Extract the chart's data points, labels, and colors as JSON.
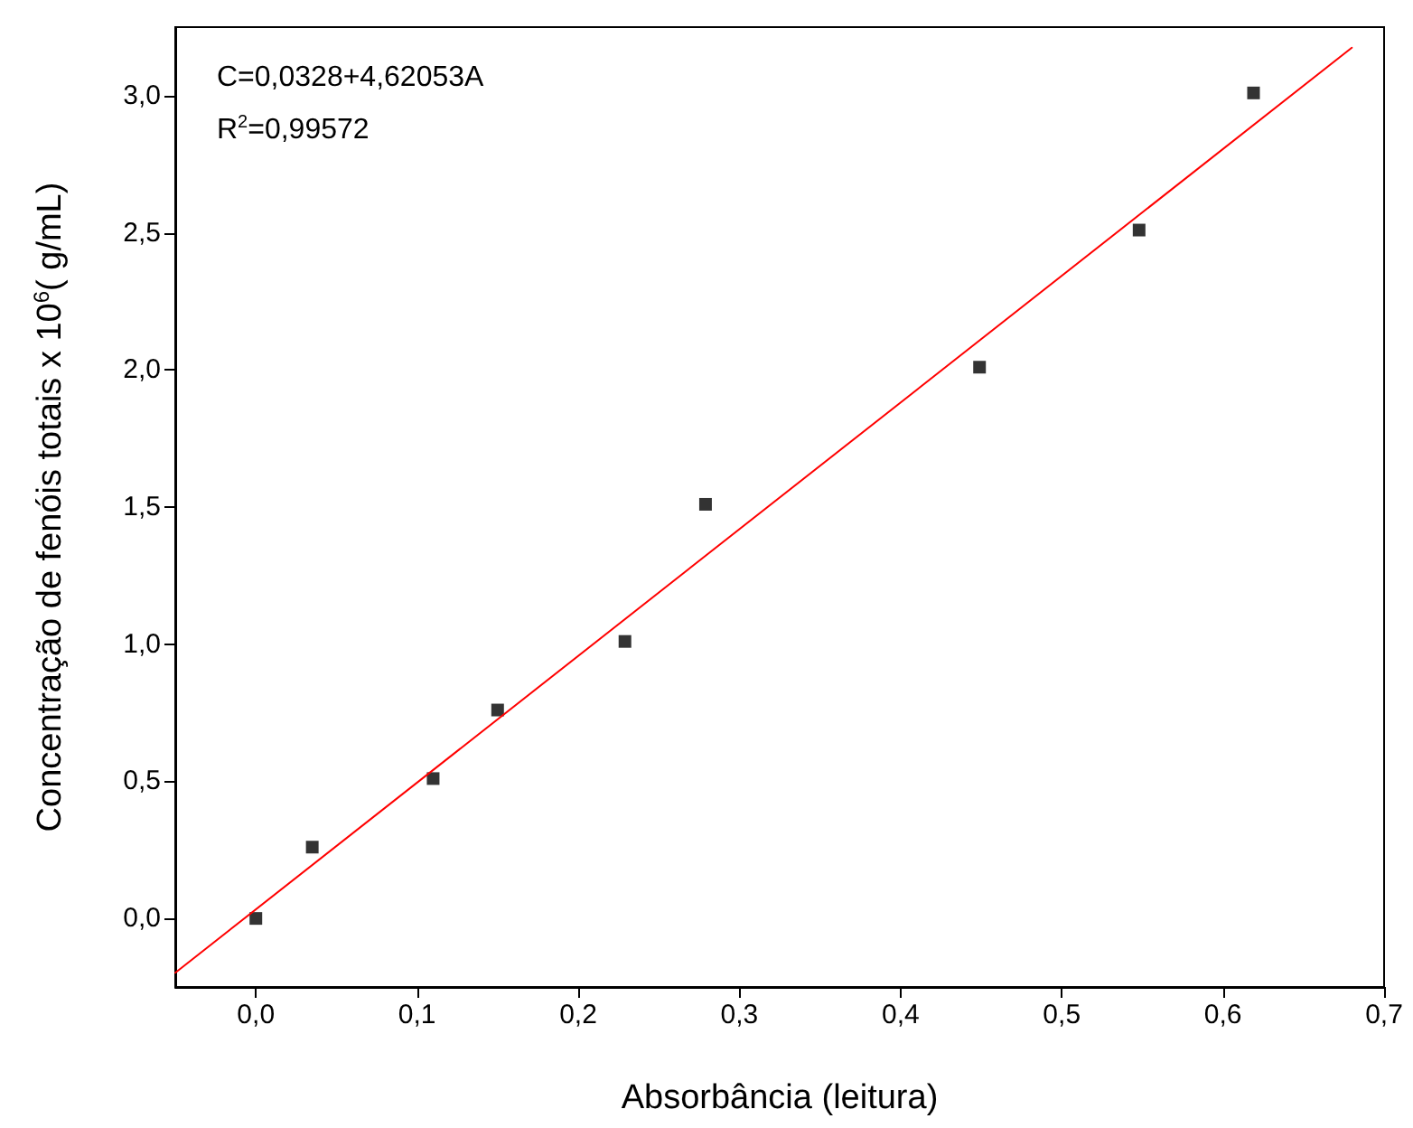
{
  "chart_data": {
    "type": "scatter",
    "xlabel": "Absorbância (leitura)",
    "ylabel": "Concentração de fenóis totais x 10$^{6}$( g/mL)",
    "annotations": [
      "C=0,0328+4,62053A",
      "R$^{2}$=0,99572"
    ],
    "xlim": [
      -0.05,
      0.7
    ],
    "ylim": [
      -0.25,
      3.25
    ],
    "xticks": [
      {
        "value": 0,
        "label": "0,0"
      },
      {
        "value": 0.1,
        "label": "0,1"
      },
      {
        "value": 0.2,
        "label": "0,2"
      },
      {
        "value": 0.3,
        "label": "0,3"
      },
      {
        "value": 0.4,
        "label": "0,4"
      },
      {
        "value": 0.5,
        "label": "0,5"
      },
      {
        "value": 0.6,
        "label": "0,6"
      },
      {
        "value": 0.7,
        "label": "0,7"
      }
    ],
    "yticks": [
      {
        "value": 0,
        "label": "0,0"
      },
      {
        "value": 0.5,
        "label": "0,5"
      },
      {
        "value": 1,
        "label": "1,0"
      },
      {
        "value": 1.5,
        "label": "1,5"
      },
      {
        "value": 2,
        "label": "2,0"
      },
      {
        "value": 2.5,
        "label": "2,5"
      },
      {
        "value": 3,
        "label": "3,0"
      }
    ],
    "grid": false,
    "series": [
      {
        "color": "#000000",
        "marker": "square",
        "x": [
          0,
          0.035,
          0.11,
          0.15,
          0.229,
          0.279,
          0.449,
          0.548,
          0.619
        ],
        "values": [
          0,
          0.26,
          0.51,
          0.76,
          1.01,
          1.51,
          2.01,
          2.51,
          3.01
        ]
      },
      {
        "type": "line",
        "color": "#ff0000",
        "marker": "none",
        "line_style": "solid",
        "x": [
          -0.05,
          0.68
        ],
        "values": [
          -0.198,
          3.175
        ]
      }
    ]
  }
}
